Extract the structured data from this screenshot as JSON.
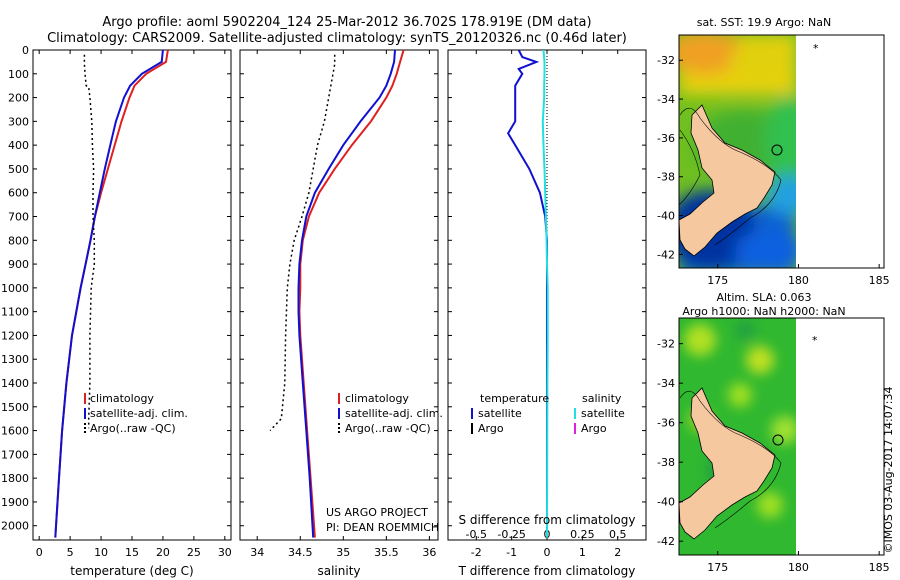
{
  "header": {
    "line1": "Argo profile: aoml 5902204_124 25-Mar-2012 36.702S 178.919E (DM data)",
    "line2": "Climatology: CARS2009. Satellite-adjusted climatology: synTS_20120326.nc (0.46d later)"
  },
  "credit": {
    "project": "US ARGO PROJECT",
    "pi": "PI: DEAN ROEMMICH",
    "stamp": "©IMOS 03-Aug-2017 14:07:34"
  },
  "colors": {
    "climatology": "#e02020",
    "satellite": "#1010d0",
    "argo": "#000000",
    "sat_salinity": "#20e0e0",
    "argo_salinity": "#e020e0",
    "land": "#f5c8a0"
  },
  "chart_data": [
    {
      "type": "line",
      "panel": "temperature",
      "xlabel": "temperature (deg C)",
      "xlim": [
        -1,
        31
      ],
      "xticks": [
        0,
        5,
        10,
        15,
        20,
        25,
        30
      ],
      "ylim": [
        2060,
        0
      ],
      "yticks": [
        0,
        100,
        200,
        300,
        400,
        500,
        600,
        700,
        800,
        900,
        1000,
        1100,
        1200,
        1300,
        1400,
        1500,
        1600,
        1700,
        1800,
        1900,
        2000
      ],
      "legend": [
        "climatology",
        "satellite-adj. clim.",
        "Argo(..raw -QC)"
      ],
      "legend_position": "lower-right",
      "series": [
        {
          "name": "climatology",
          "style": "solid",
          "color": "#e02020",
          "depth": [
            0,
            50,
            100,
            150,
            200,
            300,
            400,
            500,
            600,
            700,
            800,
            900,
            1000,
            1200,
            1400,
            1600,
            1800,
            2050
          ],
          "values": [
            20.8,
            20.5,
            17.3,
            15.4,
            14.6,
            13.3,
            12.2,
            11.1,
            10.0,
            9.0,
            8.3,
            7.5,
            6.7,
            5.3,
            4.4,
            3.7,
            3.2,
            2.6
          ]
        },
        {
          "name": "satellite-adj. clim.",
          "style": "solid",
          "color": "#1010d0",
          "depth": [
            0,
            50,
            100,
            150,
            200,
            300,
            400,
            500,
            600,
            700,
            800,
            900,
            1000,
            1200,
            1400,
            1600,
            1800,
            2050
          ],
          "values": [
            20.0,
            19.8,
            16.6,
            14.7,
            13.7,
            12.4,
            11.5,
            10.6,
            9.8,
            9.0,
            8.3,
            7.5,
            6.7,
            5.3,
            4.4,
            3.7,
            3.2,
            2.6
          ]
        },
        {
          "name": "Argo(..raw -QC)",
          "style": "dotted",
          "color": "#000000",
          "depth": [
            20,
            60,
            100,
            150,
            155,
            200,
            300,
            400,
            500,
            600,
            700,
            800,
            900,
            1000,
            1200,
            1400,
            1550,
            1590
          ],
          "values": [
            7.3,
            7.3,
            7.4,
            7.6,
            8.0,
            8.2,
            8.5,
            8.6,
            8.8,
            8.7,
            8.7,
            8.9,
            8.9,
            8.4,
            8.2,
            8.2,
            8.0,
            8.0
          ]
        }
      ]
    },
    {
      "type": "line",
      "panel": "salinity",
      "xlabel": "salinity",
      "xlim": [
        33.8,
        36.1
      ],
      "xticks": [
        34,
        34.5,
        35,
        35.5,
        36
      ],
      "ylim": [
        2060,
        0
      ],
      "legend": [
        "climatology",
        "satellite-adj. clim.",
        "Argo(..raw -QC)"
      ],
      "legend_position": "lower-right",
      "series": [
        {
          "name": "climatology",
          "style": "solid",
          "color": "#e02020",
          "depth": [
            0,
            50,
            100,
            150,
            200,
            300,
            400,
            500,
            600,
            700,
            800,
            900,
            1000,
            1100,
            1200,
            1400,
            1600,
            1800,
            2050
          ],
          "values": [
            35.7,
            35.66,
            35.62,
            35.57,
            35.5,
            35.32,
            35.1,
            34.9,
            34.72,
            34.6,
            34.53,
            34.5,
            34.5,
            34.49,
            34.5,
            34.54,
            34.58,
            34.62,
            34.67
          ]
        },
        {
          "name": "satellite-adj. clim.",
          "style": "solid",
          "color": "#1010d0",
          "depth": [
            0,
            50,
            100,
            150,
            200,
            300,
            400,
            500,
            600,
            700,
            800,
            900,
            1000,
            1100,
            1200,
            1400,
            1600,
            1800,
            2050
          ],
          "values": [
            35.6,
            35.59,
            35.55,
            35.5,
            35.42,
            35.2,
            35.0,
            34.83,
            34.67,
            34.57,
            34.52,
            34.49,
            34.48,
            34.48,
            34.49,
            34.53,
            34.57,
            34.61,
            34.65
          ]
        },
        {
          "name": "Argo(..raw -QC)",
          "style": "dotted",
          "color": "#000000",
          "depth": [
            20,
            60,
            100,
            200,
            300,
            400,
            500,
            600,
            700,
            800,
            900,
            1000,
            1200,
            1400,
            1550,
            1600
          ],
          "values": [
            34.9,
            34.9,
            34.88,
            34.83,
            34.78,
            34.7,
            34.65,
            34.6,
            34.52,
            34.43,
            34.38,
            34.35,
            34.33,
            34.32,
            34.28,
            34.15
          ]
        }
      ]
    },
    {
      "type": "line",
      "panel": "difference",
      "xlabel": "T difference from climatology",
      "xlabel_top": "S difference from climatology",
      "xlim": [
        -2.8,
        2.8
      ],
      "xticks": [
        -2,
        -1,
        0,
        1,
        2
      ],
      "xticks_top": [
        -0.5,
        -0.25,
        0,
        0.25,
        0.5
      ],
      "ylim": [
        2060,
        0
      ],
      "legend_groups": [
        {
          "title": "temperature",
          "items": [
            "satellite",
            "Argo"
          ]
        },
        {
          "title": "salinity",
          "items": [
            "satellite",
            "Argo"
          ]
        }
      ],
      "series": [
        {
          "name": "satellite",
          "group": "temperature",
          "color": "#1010d0",
          "depth": [
            0,
            30,
            50,
            80,
            100,
            150,
            200,
            300,
            350,
            400,
            500,
            600,
            700,
            800,
            1000,
            1500,
            2050
          ],
          "values": [
            -0.8,
            -0.7,
            -0.3,
            -0.8,
            -0.7,
            -0.9,
            -0.9,
            -0.9,
            -1.1,
            -0.9,
            -0.5,
            -0.2,
            -0.05,
            0.0,
            0.0,
            0.0,
            0.0
          ]
        },
        {
          "name": "satellite",
          "group": "salinity",
          "color": "#20e0e0",
          "depth": [
            0,
            50,
            100,
            150,
            200,
            300,
            400,
            500,
            600,
            700,
            800,
            900,
            1000,
            1200,
            1400,
            2050
          ],
          "values": [
            -0.1,
            -0.07,
            -0.07,
            -0.08,
            -0.08,
            -0.12,
            -0.1,
            -0.07,
            -0.05,
            -0.03,
            -0.01,
            0.0,
            0.02,
            0.02,
            0.01,
            0.0
          ]
        }
      ]
    },
    {
      "type": "heatmap",
      "panel": "sst-map",
      "title": "sat. SST: 19.9 Argo: NaN",
      "xticks": [
        175,
        180,
        185
      ],
      "yticks": [
        -32,
        -34,
        -36,
        -38,
        -40,
        -42
      ],
      "xlim": [
        172.6,
        185.3
      ],
      "ylim": [
        -42.7,
        -30.7
      ],
      "profile_location": [
        178.919,
        -36.702
      ]
    },
    {
      "type": "heatmap",
      "panel": "sla-map",
      "title_line1": "Altim. SLA: 0.063",
      "title_line2": "Argo h1000: NaN h2000: NaN",
      "xticks": [
        175,
        180,
        185
      ],
      "yticks": [
        -32,
        -34,
        -36,
        -38,
        -40,
        -42
      ],
      "xlim": [
        172.6,
        185.3
      ],
      "ylim": [
        -42.7,
        -30.7
      ],
      "profile_location": [
        178.919,
        -36.702
      ]
    }
  ]
}
